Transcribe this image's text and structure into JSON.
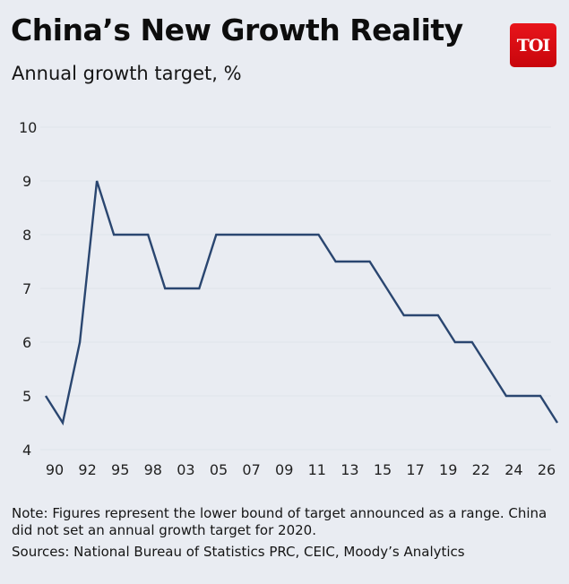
{
  "header": {
    "title": "China’s New Growth Reality",
    "subtitle": "Annual growth target, %",
    "logo": "TOI"
  },
  "chart_data": {
    "type": "line",
    "title": "China’s New Growth Reality",
    "subtitle": "Annual growth target, %",
    "ylim": [
      4,
      10
    ],
    "yticks": [
      10,
      9,
      8,
      7,
      6,
      5,
      4
    ],
    "xtick_labels": [
      "90",
      "92",
      "95",
      "98",
      "03",
      "05",
      "07",
      "09",
      "11",
      "13",
      "15",
      "17",
      "19",
      "22",
      "24",
      "26"
    ],
    "grid": true,
    "line_color": "#2a4670",
    "series": [
      {
        "values": [
          5,
          4.5,
          6,
          9,
          8,
          8,
          8,
          7,
          7,
          7,
          8,
          8,
          8,
          8,
          8,
          8,
          8,
          7.5,
          7.5,
          7.5,
          7,
          6.5,
          6.5,
          6.5,
          6,
          6,
          5.5,
          5,
          5,
          5,
          4.5
        ]
      }
    ]
  },
  "footer": {
    "note": "Note: Figures represent the lower bound of target announced as a range. China did not set an annual growth target for 2020.",
    "sources": "Sources: National Bureau of Statistics PRC, CEIC, Moody’s Analytics"
  }
}
